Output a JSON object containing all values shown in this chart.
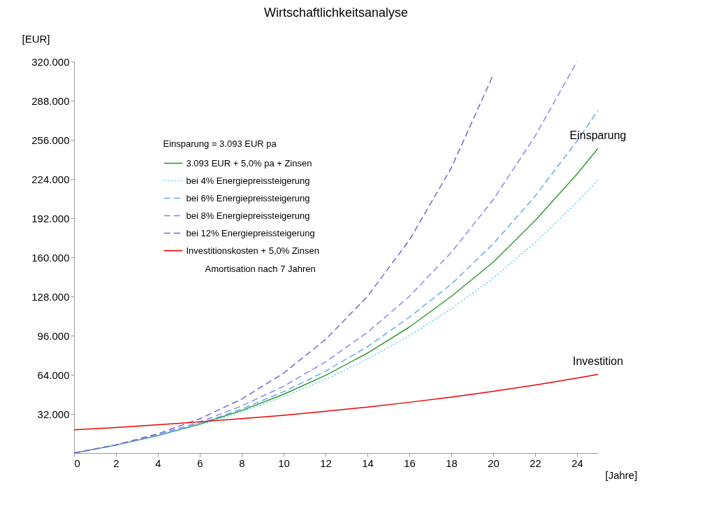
{
  "chart_data": {
    "type": "line",
    "title": "Wirtschaftlichkeitsanalyse",
    "ylabel": "[EUR]",
    "xlabel": "[Jahre]",
    "legend_title": "Einsparung = 3.093 EUR pa",
    "legend": "top left",
    "grid": false,
    "marker": "none",
    "x": [
      0,
      2,
      4,
      6,
      8,
      10,
      12,
      14,
      16,
      18,
      20,
      22,
      24,
      25
    ],
    "xlim": [
      0,
      25
    ],
    "xticks": [
      0,
      2,
      4,
      6,
      8,
      10,
      12,
      14,
      16,
      18,
      20,
      22,
      24
    ],
    "ylim": [
      0,
      320000
    ],
    "yticks": [
      {
        "value": 32000,
        "label": "32.000"
      },
      {
        "value": 64000,
        "label": "64.000"
      },
      {
        "value": 96000,
        "label": "96.000"
      },
      {
        "value": 128000,
        "label": "128.000"
      },
      {
        "value": 160000,
        "label": "160.000"
      },
      {
        "value": 192000,
        "label": "192.000"
      },
      {
        "value": 224000,
        "label": "224.000"
      },
      {
        "value": 256000,
        "label": "256.000"
      },
      {
        "value": 288000,
        "label": "288.000"
      },
      {
        "value": 320000,
        "label": "320.000"
      }
    ],
    "series": [
      {
        "name": "3.093 EUR + 5,0% pa + Zinsen",
        "color": "#339933",
        "line_style": "solid",
        "values": [
          0,
          6500,
          14300,
          23700,
          34800,
          48000,
          63500,
          81700,
          103000,
          128000,
          156000,
          190000,
          228000,
          249000
        ]
      },
      {
        "name": "bei 4% Energiepreissteigerung",
        "color": "#66ccee",
        "line_style": "dotted",
        "values": [
          0,
          6500,
          14100,
          23100,
          33700,
          46000,
          60300,
          76800,
          95900,
          118000,
          143000,
          172000,
          205000,
          223000
        ]
      },
      {
        "name": "bei 6% Energiepreissteigerung",
        "color": "#66aaee",
        "line_style": "dashed",
        "values": [
          0,
          6500,
          14500,
          24200,
          36000,
          50100,
          66900,
          86900,
          111000,
          138000,
          171000,
          210000,
          255000,
          280000
        ]
      },
      {
        "name": "bei 8% Energiepreissteigerung",
        "color": "#8888ee",
        "line_style": "dashed",
        "values": [
          0,
          6600,
          15000,
          25400,
          38500,
          54600,
          74500,
          98700,
          128000,
          164000,
          207000,
          259000,
          320000,
          null
        ]
      },
      {
        "name": "bei 12% Energiepreissteigerung",
        "color": "#7766cc",
        "line_style": "dashed",
        "values": [
          0,
          6700,
          15800,
          28000,
          44100,
          65300,
          92800,
          128000,
          174000,
          233000,
          309000,
          null,
          null,
          null
        ]
      },
      {
        "name": "Investitionskosten + 5,0% Zinsen",
        "color": "#ee0000",
        "line_style": "solid",
        "values": [
          19000,
          20900,
          23100,
          25500,
          28100,
          30900,
          34100,
          37600,
          41500,
          45700,
          50400,
          55600,
          61300,
          64300
        ]
      }
    ],
    "annotations": [
      "Amortisation nach 7 Jahren",
      {
        "text": "Einsparung",
        "x": 25,
        "y": 249000
      },
      {
        "text": "Investition",
        "x": 25,
        "y": 64300
      }
    ]
  }
}
